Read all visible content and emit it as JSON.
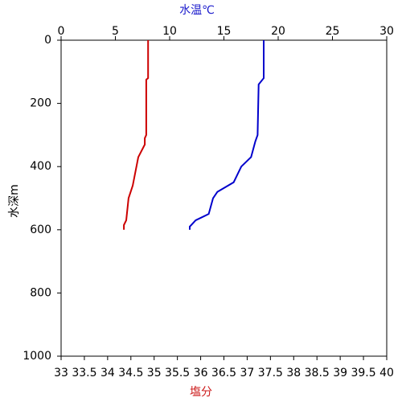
{
  "chart_data": {
    "type": "line",
    "top_axis_label": "水温℃",
    "top_axis_label_color": "#1a1acc",
    "bottom_axis_label": "塩分",
    "bottom_axis_label_color": "#cc1a1a",
    "ylabel": "水深m",
    "xlim": [
      33,
      40
    ],
    "xticks": [
      33,
      33.5,
      34,
      34.5,
      35,
      35.5,
      36,
      36.5,
      37,
      37.5,
      38,
      38.5,
      39,
      39.5,
      40
    ],
    "x2lim": [
      0,
      30
    ],
    "x2ticks": [
      0,
      5,
      10,
      15,
      20,
      25,
      30
    ],
    "ylim": [
      0,
      1000
    ],
    "yticks": [
      0,
      200,
      400,
      600,
      800,
      1000
    ],
    "y_inverted": true,
    "series": [
      {
        "color": "#cc0000",
        "axis": "x",
        "x": [
          34.87,
          34.87,
          34.83,
          34.83,
          34.8,
          34.8,
          34.66,
          34.54,
          34.45,
          34.4,
          34.35,
          34.35
        ],
        "y": [
          0,
          120,
          125,
          300,
          310,
          330,
          370,
          460,
          500,
          570,
          585,
          600
        ]
      },
      {
        "color": "#0000cc",
        "axis": "x2",
        "x": [
          18.67,
          18.67,
          18.2,
          18.1,
          17.9,
          17.5,
          16.6,
          15.9,
          14.4,
          14.0,
          13.6,
          12.4,
          11.85,
          11.85
        ],
        "y": [
          0,
          120,
          140,
          300,
          320,
          370,
          400,
          450,
          480,
          500,
          550,
          570,
          590,
          600
        ]
      }
    ]
  }
}
